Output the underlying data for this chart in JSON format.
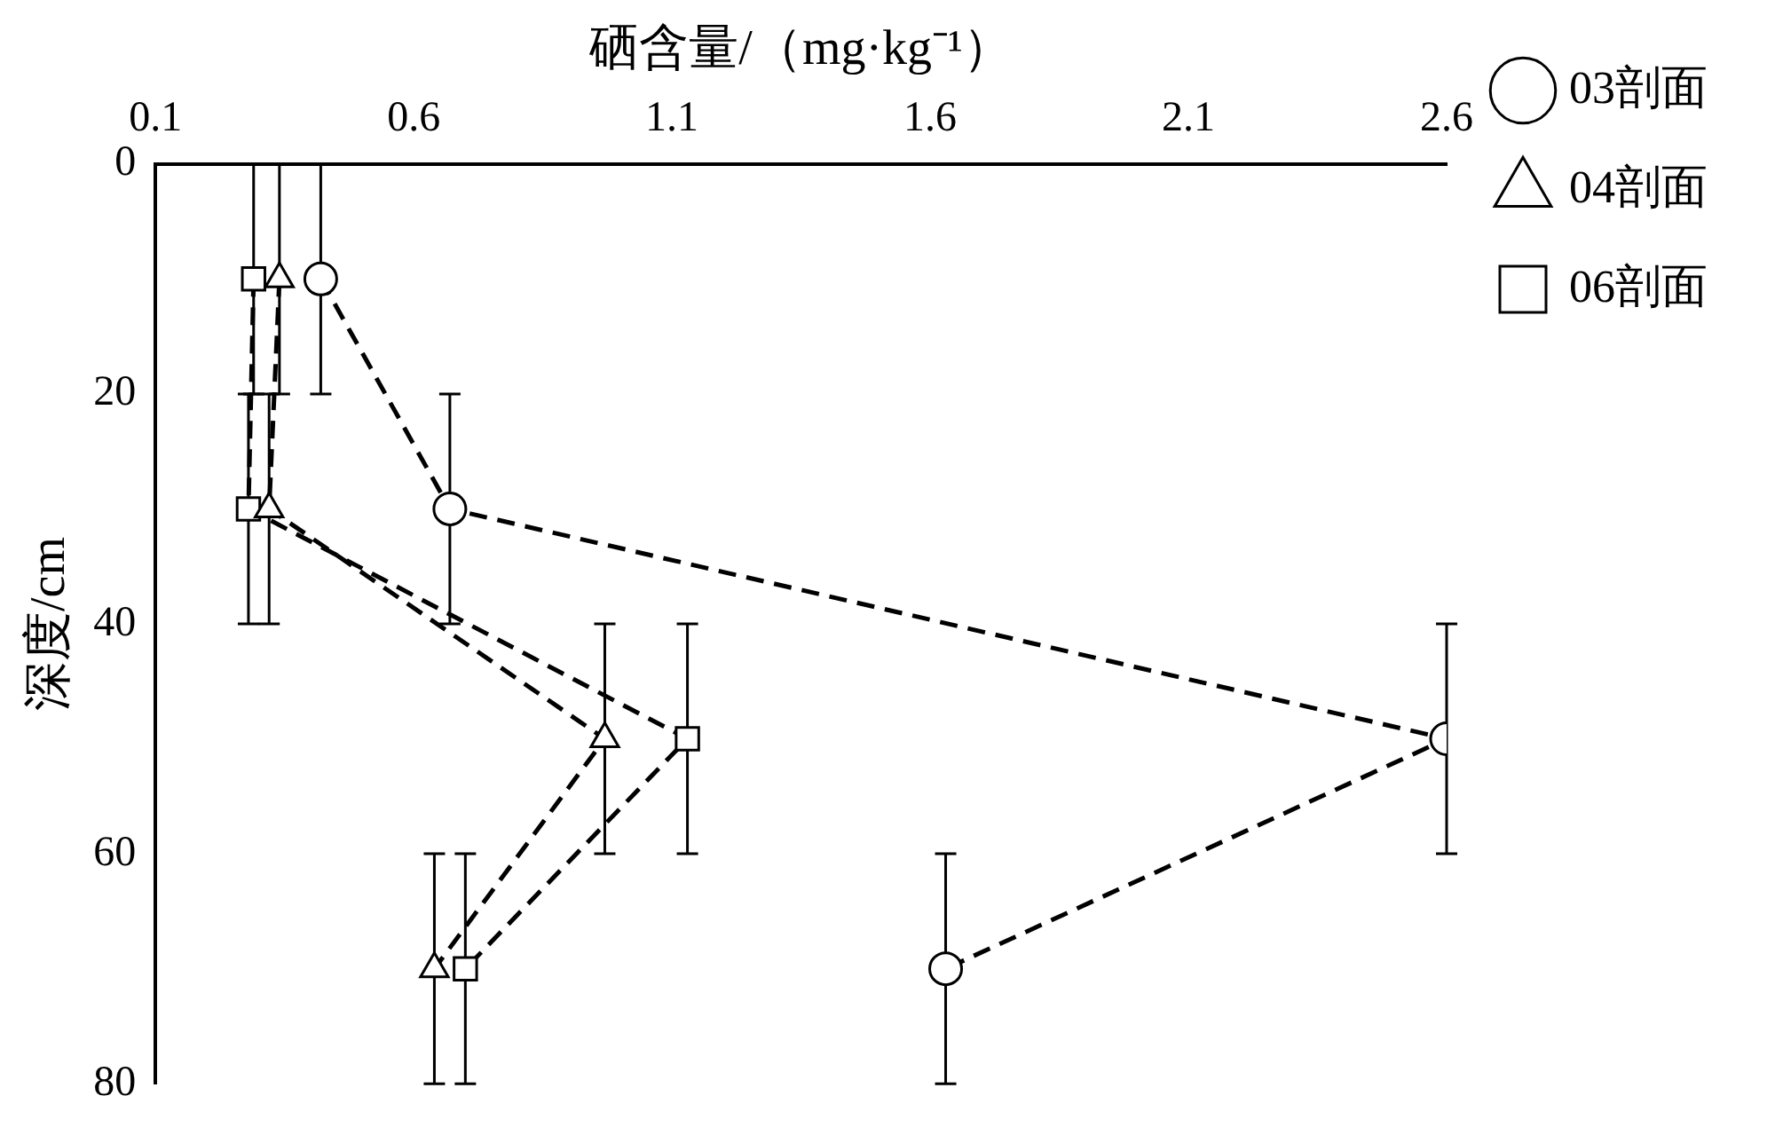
{
  "chart_data": {
    "type": "line",
    "xlabel": "硒含量/（mg·kg⁻¹）",
    "ylabel": "深度/cm",
    "xlim": [
      0.1,
      2.6
    ],
    "xticks": [
      0.1,
      0.6,
      1.1,
      1.6,
      2.1,
      2.6
    ],
    "ylim": [
      80,
      0
    ],
    "yticks": [
      0,
      20,
      40,
      60,
      80
    ],
    "grid": false,
    "legend": "right",
    "line_style": "dashed",
    "series": [
      {
        "name": "03剖面",
        "color": "#000000",
        "marker": "circle",
        "x": [
          0.42,
          0.67,
          2.6,
          1.63
        ],
        "values": [
          10,
          30,
          50,
          70
        ],
        "errors": [
          10,
          10,
          10,
          10
        ]
      },
      {
        "name": "04剖面",
        "color": "#000000",
        "marker": "triangle",
        "x": [
          0.34,
          0.32,
          0.97,
          0.64
        ],
        "values": [
          10,
          30,
          50,
          70
        ],
        "errors": [
          10,
          10,
          10,
          10
        ]
      },
      {
        "name": "06剖面",
        "color": "#000000",
        "marker": "square",
        "x": [
          0.29,
          0.28,
          1.13,
          0.7
        ],
        "values": [
          10,
          30,
          50,
          70
        ],
        "errors": [
          10,
          10,
          10,
          10
        ]
      }
    ]
  }
}
